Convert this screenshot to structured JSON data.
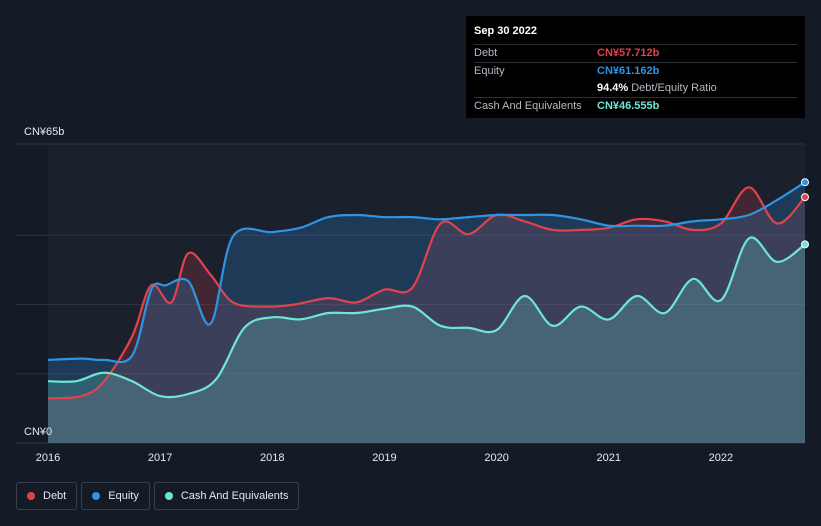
{
  "tooltip": {
    "date": "Sep 30 2022",
    "rows": [
      {
        "label": "Debt",
        "value": "CN¥57.712b",
        "color": "#e0434d"
      },
      {
        "label": "Equity",
        "value": "CN¥61.162b",
        "color": "#2e94e6"
      },
      {
        "label": "",
        "value": "94.4%",
        "sub": "Debt/Equity Ratio",
        "color": "#ffffff"
      },
      {
        "label": "Cash And Equivalents",
        "value": "CN¥46.555b",
        "color": "#6ee6d4"
      }
    ]
  },
  "legend": [
    {
      "label": "Debt",
      "color": "#e0434d"
    },
    {
      "label": "Equity",
      "color": "#2e94e6"
    },
    {
      "label": "Cash And Equivalents",
      "color": "#6ee6d4"
    }
  ],
  "chart_data": {
    "type": "area",
    "xlim": [
      2016.0,
      2022.75
    ],
    "ylim": [
      0,
      65
    ],
    "y_tick_labels": [
      {
        "value": 65,
        "label": "CN¥65b"
      },
      {
        "value": 0,
        "label": "CN¥0"
      }
    ],
    "x_ticks": [
      "2016",
      "2017",
      "2018",
      "2019",
      "2020",
      "2021",
      "2022"
    ],
    "grid": true,
    "legend_position": "bottom-left",
    "series": [
      {
        "name": "Debt",
        "color": "#e0434d",
        "x": [
          2016.0,
          2016.3,
          2016.5,
          2016.75,
          2016.92,
          2017.1,
          2017.25,
          2017.45,
          2017.65,
          2017.95,
          2018.2,
          2018.5,
          2018.75,
          2019.0,
          2019.25,
          2019.5,
          2019.75,
          2020.0,
          2020.25,
          2020.5,
          2020.75,
          2021.0,
          2021.25,
          2021.5,
          2021.75,
          2022.0,
          2022.25,
          2022.5,
          2022.75
        ],
        "y": [
          10.5,
          11.0,
          14.5,
          25.0,
          37.0,
          33.0,
          44.5,
          39.5,
          33.0,
          32.0,
          32.5,
          34.0,
          33.0,
          36.0,
          36.5,
          51.5,
          49.0,
          53.5,
          52.0,
          50.0,
          50.0,
          50.5,
          52.5,
          52.0,
          50.0,
          51.5,
          60.0,
          51.5,
          57.7
        ]
      },
      {
        "name": "Equity",
        "color": "#2e94e6",
        "x": [
          2016.0,
          2016.3,
          2016.5,
          2016.75,
          2016.92,
          2017.05,
          2017.25,
          2017.45,
          2017.65,
          2018.0,
          2018.25,
          2018.5,
          2018.75,
          2019.0,
          2019.25,
          2019.5,
          2019.75,
          2020.0,
          2020.25,
          2020.5,
          2020.75,
          2021.0,
          2021.25,
          2021.5,
          2021.75,
          2022.0,
          2022.25,
          2022.5,
          2022.75
        ],
        "y": [
          19.5,
          19.8,
          19.5,
          20.5,
          36.0,
          37.0,
          38.0,
          28.0,
          48.5,
          49.5,
          50.5,
          53.0,
          53.5,
          53.0,
          53.0,
          52.5,
          53.0,
          53.5,
          53.5,
          53.5,
          52.5,
          51.0,
          51.0,
          51.0,
          52.0,
          52.5,
          53.5,
          57.0,
          61.2
        ]
      },
      {
        "name": "Cash And Equivalents",
        "color": "#6ee6d4",
        "x": [
          2016.0,
          2016.25,
          2016.5,
          2016.75,
          2017.0,
          2017.25,
          2017.5,
          2017.75,
          2018.0,
          2018.25,
          2018.5,
          2018.75,
          2019.0,
          2019.25,
          2019.5,
          2019.75,
          2020.0,
          2020.25,
          2020.5,
          2020.75,
          2021.0,
          2021.25,
          2021.5,
          2021.75,
          2022.0,
          2022.25,
          2022.5,
          2022.75
        ],
        "y": [
          14.5,
          14.5,
          16.5,
          14.5,
          11.0,
          11.5,
          15.0,
          27.0,
          29.5,
          29.0,
          30.5,
          30.5,
          31.5,
          32.0,
          27.5,
          27.0,
          26.5,
          34.5,
          27.5,
          32.0,
          29.0,
          34.5,
          30.5,
          38.5,
          33.5,
          48.0,
          42.5,
          46.6
        ]
      }
    ]
  }
}
